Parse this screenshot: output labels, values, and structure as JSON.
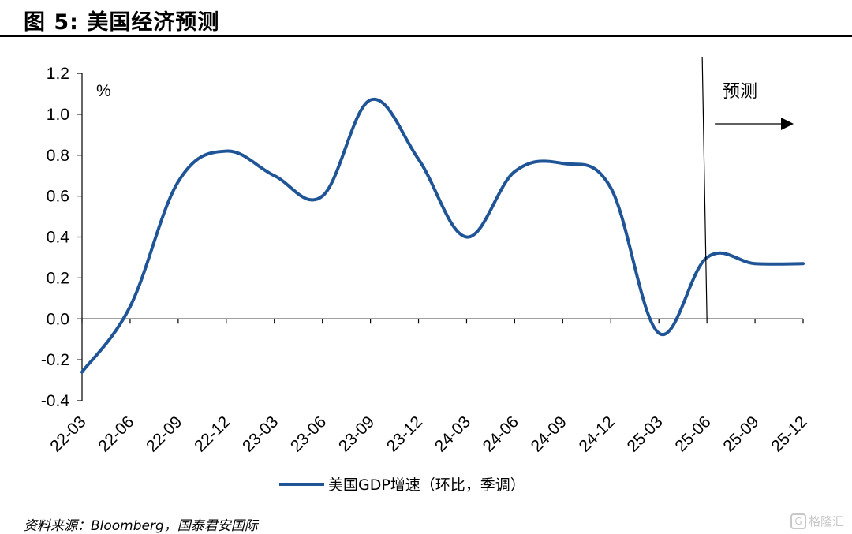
{
  "figure": {
    "title": "图 5:  美国经济预测",
    "source": "资料来源：Bloomberg，国泰君安国际",
    "watermark": "格隆汇",
    "watermark_icon": "G"
  },
  "chart_data": {
    "type": "line",
    "title": "",
    "xlabel": "",
    "ylabel": "%",
    "ylim": [
      -0.4,
      1.2
    ],
    "yticks": [
      -0.4,
      -0.2,
      0.0,
      0.2,
      0.4,
      0.6,
      0.8,
      1.0,
      1.2
    ],
    "ytick_labels": [
      "-0.4",
      "-0.2",
      "0.0",
      "0.2",
      "0.4",
      "0.6",
      "0.8",
      "1.0",
      "1.2"
    ],
    "categories": [
      "22-03",
      "22-06",
      "22-09",
      "22-12",
      "23-03",
      "23-06",
      "23-09",
      "23-12",
      "24-03",
      "24-06",
      "24-09",
      "24-12",
      "25-03",
      "25-06",
      "25-09",
      "25-12"
    ],
    "series": [
      {
        "name": "美国GDP增速（环比，季调）",
        "color": "#1f5496",
        "values": [
          -0.26,
          0.06,
          0.67,
          0.82,
          0.7,
          0.6,
          1.07,
          0.78,
          0.4,
          0.72,
          0.76,
          0.64,
          -0.07,
          0.3,
          0.27,
          0.27
        ]
      }
    ],
    "forecast": {
      "label": "预测",
      "start_category": "25-06"
    },
    "legend_position": "bottom",
    "grid": false
  }
}
